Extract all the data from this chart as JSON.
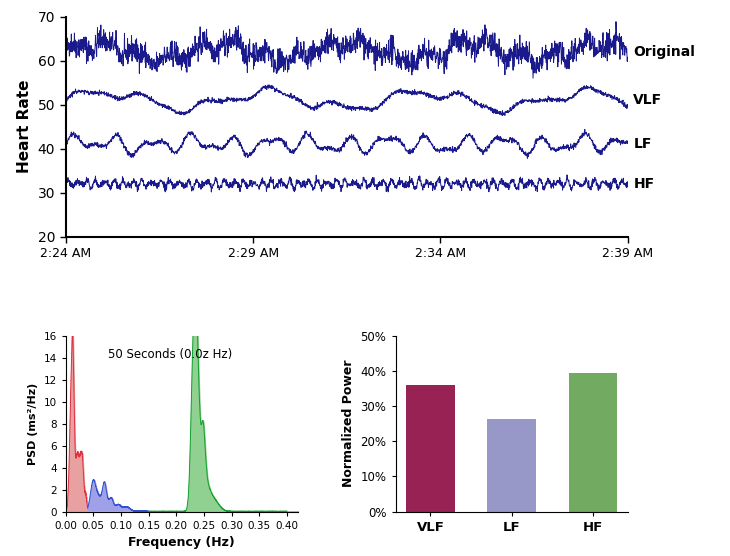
{
  "top_chart": {
    "ylim": [
      20,
      70
    ],
    "yticks": [
      20,
      30,
      40,
      50,
      60,
      70
    ],
    "ylabel": "Heart Rate",
    "xtick_labels": [
      "2:24 AM",
      "2:29 AM",
      "2:34 AM",
      "2:39 AM"
    ],
    "line_color": "#1a1a8c",
    "line_width": 0.7,
    "labels": [
      "Original",
      "VLF",
      "LF",
      "HF"
    ],
    "centers": [
      62,
      51,
      41,
      32
    ]
  },
  "psd_chart": {
    "title": "50 Seconds (0.0z Hz)",
    "xlabel": "Frequency (Hz)",
    "ylabel": "PSD (ms²/Hz)",
    "xlim": [
      0,
      0.42
    ],
    "ylim": [
      0,
      16
    ],
    "yticks": [
      0,
      2,
      4,
      6,
      8,
      10,
      12,
      14,
      16
    ],
    "xticks": [
      0.0,
      0.05,
      0.1,
      0.15,
      0.2,
      0.25,
      0.3,
      0.35,
      0.4
    ],
    "vlf_color": "#e03040",
    "lf_color": "#3050d0",
    "hf_color": "#10a030",
    "vlf_fill": "#e8a0a0",
    "lf_fill": "#a0a0e8",
    "hf_fill": "#90d090"
  },
  "bar_chart": {
    "categories": [
      "VLF",
      "LF",
      "HF"
    ],
    "values": [
      0.36,
      0.263,
      0.393
    ],
    "colors": [
      "#992255",
      "#9898c8",
      "#72aa62"
    ],
    "ylabel": "Normalized Power",
    "ylim": [
      0,
      0.5
    ],
    "ytick_labels": [
      "0%",
      "10%",
      "20%",
      "30%",
      "40%",
      "50%"
    ]
  }
}
